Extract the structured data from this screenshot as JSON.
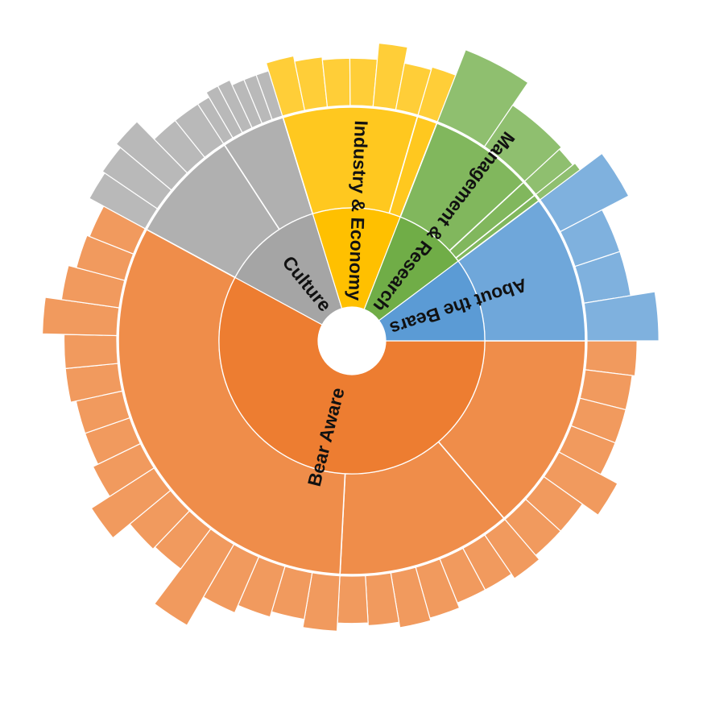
{
  "chart_data": {
    "type": "sunburst",
    "title": "",
    "levels": 3,
    "categories": [
      {
        "name": "Bear Aware",
        "color": "#ED7D31",
        "subcategories": [
          {
            "name": "",
            "value": 59,
            "leaves": [
              {
                "name": "",
                "value": 2
              },
              {
                "name": "",
                "value": 1
              },
              {
                "name": "",
                "value": 1
              },
              {
                "name": "",
                "value": 1
              },
              {
                "name": "",
                "value": 8
              },
              {
                "name": "",
                "value": 1
              },
              {
                "name": "",
                "value": 1
              }
            ]
          },
          {
            "name": "",
            "value": 52,
            "leaves": [
              {
                "name": "",
                "value": 3
              },
              {
                "name": "",
                "value": 1
              },
              {
                "name": "",
                "value": 1
              },
              {
                "name": "",
                "value": 3
              },
              {
                "name": "",
                "value": 4
              },
              {
                "name": "",
                "value": 2
              },
              {
                "name": "",
                "value": 1
              }
            ]
          },
          {
            "name": "",
            "value": 138,
            "leaves": [
              {
                "name": "",
                "value": 4
              },
              {
                "name": "",
                "value": 1
              },
              {
                "name": "",
                "value": 3
              },
              {
                "name": "",
                "value": 6
              },
              {
                "name": "",
                "value": 18
              },
              {
                "name": "",
                "value": 2
              },
              {
                "name": "",
                "value": 3
              },
              {
                "name": "",
                "value": 11
              },
              {
                "name": "",
                "value": 3
              },
              {
                "name": "",
                "value": 1
              },
              {
                "name": "",
                "value": 1
              },
              {
                "name": "",
                "value": 3
              },
              {
                "name": "",
                "value": 3
              },
              {
                "name": "",
                "value": 11
              },
              {
                "name": "",
                "value": 5
              },
              {
                "name": "",
                "value": 2
              },
              {
                "name": "",
                "value": 1
              }
            ]
          }
        ]
      },
      {
        "name": "Culture",
        "color": "#A5A5A5",
        "subcategories": [
          {
            "name": "",
            "value": 34,
            "leaves": [
              {
                "name": "",
                "value": 7
              },
              {
                "name": "",
                "value": 8
              },
              {
                "name": "",
                "value": 10
              },
              {
                "name": "",
                "value": 1
              },
              {
                "name": "",
                "value": 1
              }
            ]
          },
          {
            "name": "",
            "value": 19,
            "leaves": [
              {
                "name": "",
                "value": 1
              },
              {
                "name": "",
                "value": 3
              },
              {
                "name": "",
                "value": 3
              },
              {
                "name": "",
                "value": 1
              },
              {
                "name": "",
                "value": 1
              },
              {
                "name": "",
                "value": 1
              }
            ]
          }
        ]
      },
      {
        "name": "Industry & Economy",
        "color": "#FFC000",
        "subcategories": [
          {
            "name": "",
            "value": 40,
            "leaves": [
              {
                "name": "",
                "value": 4
              },
              {
                "name": "",
                "value": 2
              },
              {
                "name": "",
                "value": 1
              },
              {
                "name": "",
                "value": 1
              },
              {
                "name": "",
                "value": 7
              },
              {
                "name": "",
                "value": 1
              }
            ]
          },
          {
            "name": "",
            "value": 6,
            "leaves": [
              {
                "name": "",
                "value": 2
              }
            ]
          }
        ]
      },
      {
        "name": "Management & Research",
        "color": "#70AD47",
        "subcategories": [
          {
            "name": "",
            "value": 31,
            "leaves": [
              {
                "name": "",
                "value": 12
              },
              {
                "name": "",
                "value": 2
              }
            ]
          },
          {
            "name": "",
            "value": 5,
            "leaves": [
              {
                "name": "",
                "value": 1
              }
            ]
          },
          {
            "name": "",
            "value": 2,
            "leaves": [
              {
                "name": "",
                "value": 2
              }
            ]
          }
        ]
      },
      {
        "name": "About the Bears",
        "color": "#5B9BD5",
        "subcategories": [
          {
            "name": "",
            "value": 44,
            "leaves": [
              {
                "name": "",
                "value": 12
              },
              {
                "name": "",
                "value": 1
              },
              {
                "name": "",
                "value": 1
              },
              {
                "name": "",
                "value": 10
              }
            ]
          }
        ]
      }
    ]
  }
}
